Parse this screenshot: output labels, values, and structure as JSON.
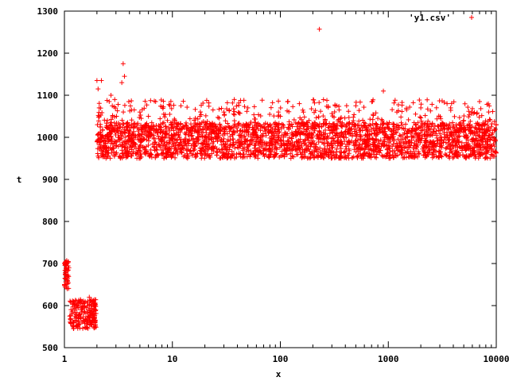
{
  "chart_data": {
    "type": "scatter",
    "title": "",
    "xlabel": "x",
    "ylabel": "t",
    "x_scale": "log",
    "xlim": [
      1,
      10000
    ],
    "ylim": [
      500,
      1300
    ],
    "x_ticks": [
      "1",
      "10",
      "100",
      "1000",
      "10000"
    ],
    "y_ticks": [
      "500",
      "600",
      "700",
      "800",
      "900",
      "1000",
      "1100",
      "1200",
      "1300"
    ],
    "legend_position": "top-right",
    "marker": "plus",
    "grid": false,
    "series": [
      {
        "name": "'y1.csv'",
        "color": "#ff0000",
        "points": [
          [
            1.0,
            650
          ],
          [
            1.01,
            665
          ],
          [
            1.02,
            678
          ],
          [
            1.03,
            700
          ],
          [
            1.05,
            707
          ],
          [
            1.06,
            640
          ],
          [
            1.07,
            660
          ],
          [
            1.08,
            672
          ],
          [
            1.1,
            690
          ],
          [
            1.12,
            575
          ],
          [
            1.15,
            560
          ],
          [
            1.2,
            590
          ],
          [
            1.25,
            570
          ],
          [
            1.3,
            600
          ],
          [
            1.35,
            555
          ],
          [
            1.4,
            580
          ],
          [
            1.45,
            610
          ],
          [
            1.5,
            565
          ],
          [
            1.55,
            548
          ],
          [
            1.6,
            595
          ],
          [
            1.65,
            575
          ],
          [
            1.7,
            620
          ],
          [
            1.75,
            560
          ],
          [
            1.8,
            585
          ],
          [
            1.85,
            605
          ],
          [
            1.9,
            570
          ],
          [
            1.95,
            590
          ],
          [
            2.0,
            1135
          ],
          [
            2.02,
            1030
          ],
          [
            2.05,
            1115
          ],
          [
            2.1,
            1070
          ],
          [
            2.15,
            1025
          ],
          [
            2.2,
            1135
          ],
          [
            2.3,
            970
          ],
          [
            2.4,
            965
          ],
          [
            2.5,
            1040
          ],
          [
            2.6,
            1085
          ],
          [
            2.7,
            1100
          ],
          [
            2.8,
            975
          ],
          [
            2.9,
            1020
          ],
          [
            3.0,
            960
          ],
          [
            3.2,
            1000
          ],
          [
            3.4,
            1130
          ],
          [
            3.5,
            1175
          ],
          [
            3.6,
            1145
          ],
          [
            3.7,
            990
          ],
          [
            3.8,
            955
          ],
          [
            4.0,
            1030
          ],
          [
            4.2,
            1065
          ],
          [
            4.5,
            985
          ],
          [
            5.0,
            1060
          ],
          [
            5.5,
            975
          ],
          [
            6.0,
            1050
          ],
          [
            7.0,
            1085
          ],
          [
            8.0,
            960
          ],
          [
            9.0,
            1040
          ],
          [
            10.0,
            995
          ],
          [
            12.0,
            1075
          ],
          [
            15.0,
            980
          ],
          [
            18.0,
            1050
          ],
          [
            20.0,
            965
          ],
          [
            25.0,
            1025
          ],
          [
            30.0,
            1060
          ],
          [
            35.0,
            955
          ],
          [
            40.0,
            1015
          ],
          [
            50.0,
            1070
          ],
          [
            60.0,
            990
          ],
          [
            70.0,
            960
          ],
          [
            80.0,
            1030
          ],
          [
            100.0,
            1050
          ],
          [
            120.0,
            975
          ],
          [
            150.0,
            1080
          ],
          [
            180.0,
            1005
          ],
          [
            200.0,
            960
          ],
          [
            230.0,
            1257
          ],
          [
            260.0,
            1040
          ],
          [
            300.0,
            985
          ],
          [
            350.0,
            1065
          ],
          [
            400.0,
            955
          ],
          [
            450.0,
            1020
          ],
          [
            500.0,
            1075
          ],
          [
            600.0,
            990
          ],
          [
            700.0,
            960
          ],
          [
            800.0,
            1045
          ],
          [
            900.0,
            1110
          ],
          [
            1000.0,
            975
          ],
          [
            1200.0,
            1060
          ],
          [
            1500.0,
            1000
          ],
          [
            1800.0,
            955
          ],
          [
            2000.0,
            1070
          ],
          [
            2500.0,
            1025
          ],
          [
            3000.0,
            965
          ],
          [
            3500.0,
            1080
          ],
          [
            4000.0,
            990
          ],
          [
            5000.0,
            1040
          ],
          [
            6000.0,
            960
          ],
          [
            7000.0,
            1085
          ],
          [
            8000.0,
            1010
          ],
          [
            9000.0,
            970
          ],
          [
            10000.0,
            1030
          ]
        ],
        "band": {
          "x_range": [
            2.0,
            10000
          ],
          "core_y_range": [
            950,
            1035
          ],
          "outlier_y_range": [
            1035,
            1090
          ]
        }
      }
    ]
  }
}
